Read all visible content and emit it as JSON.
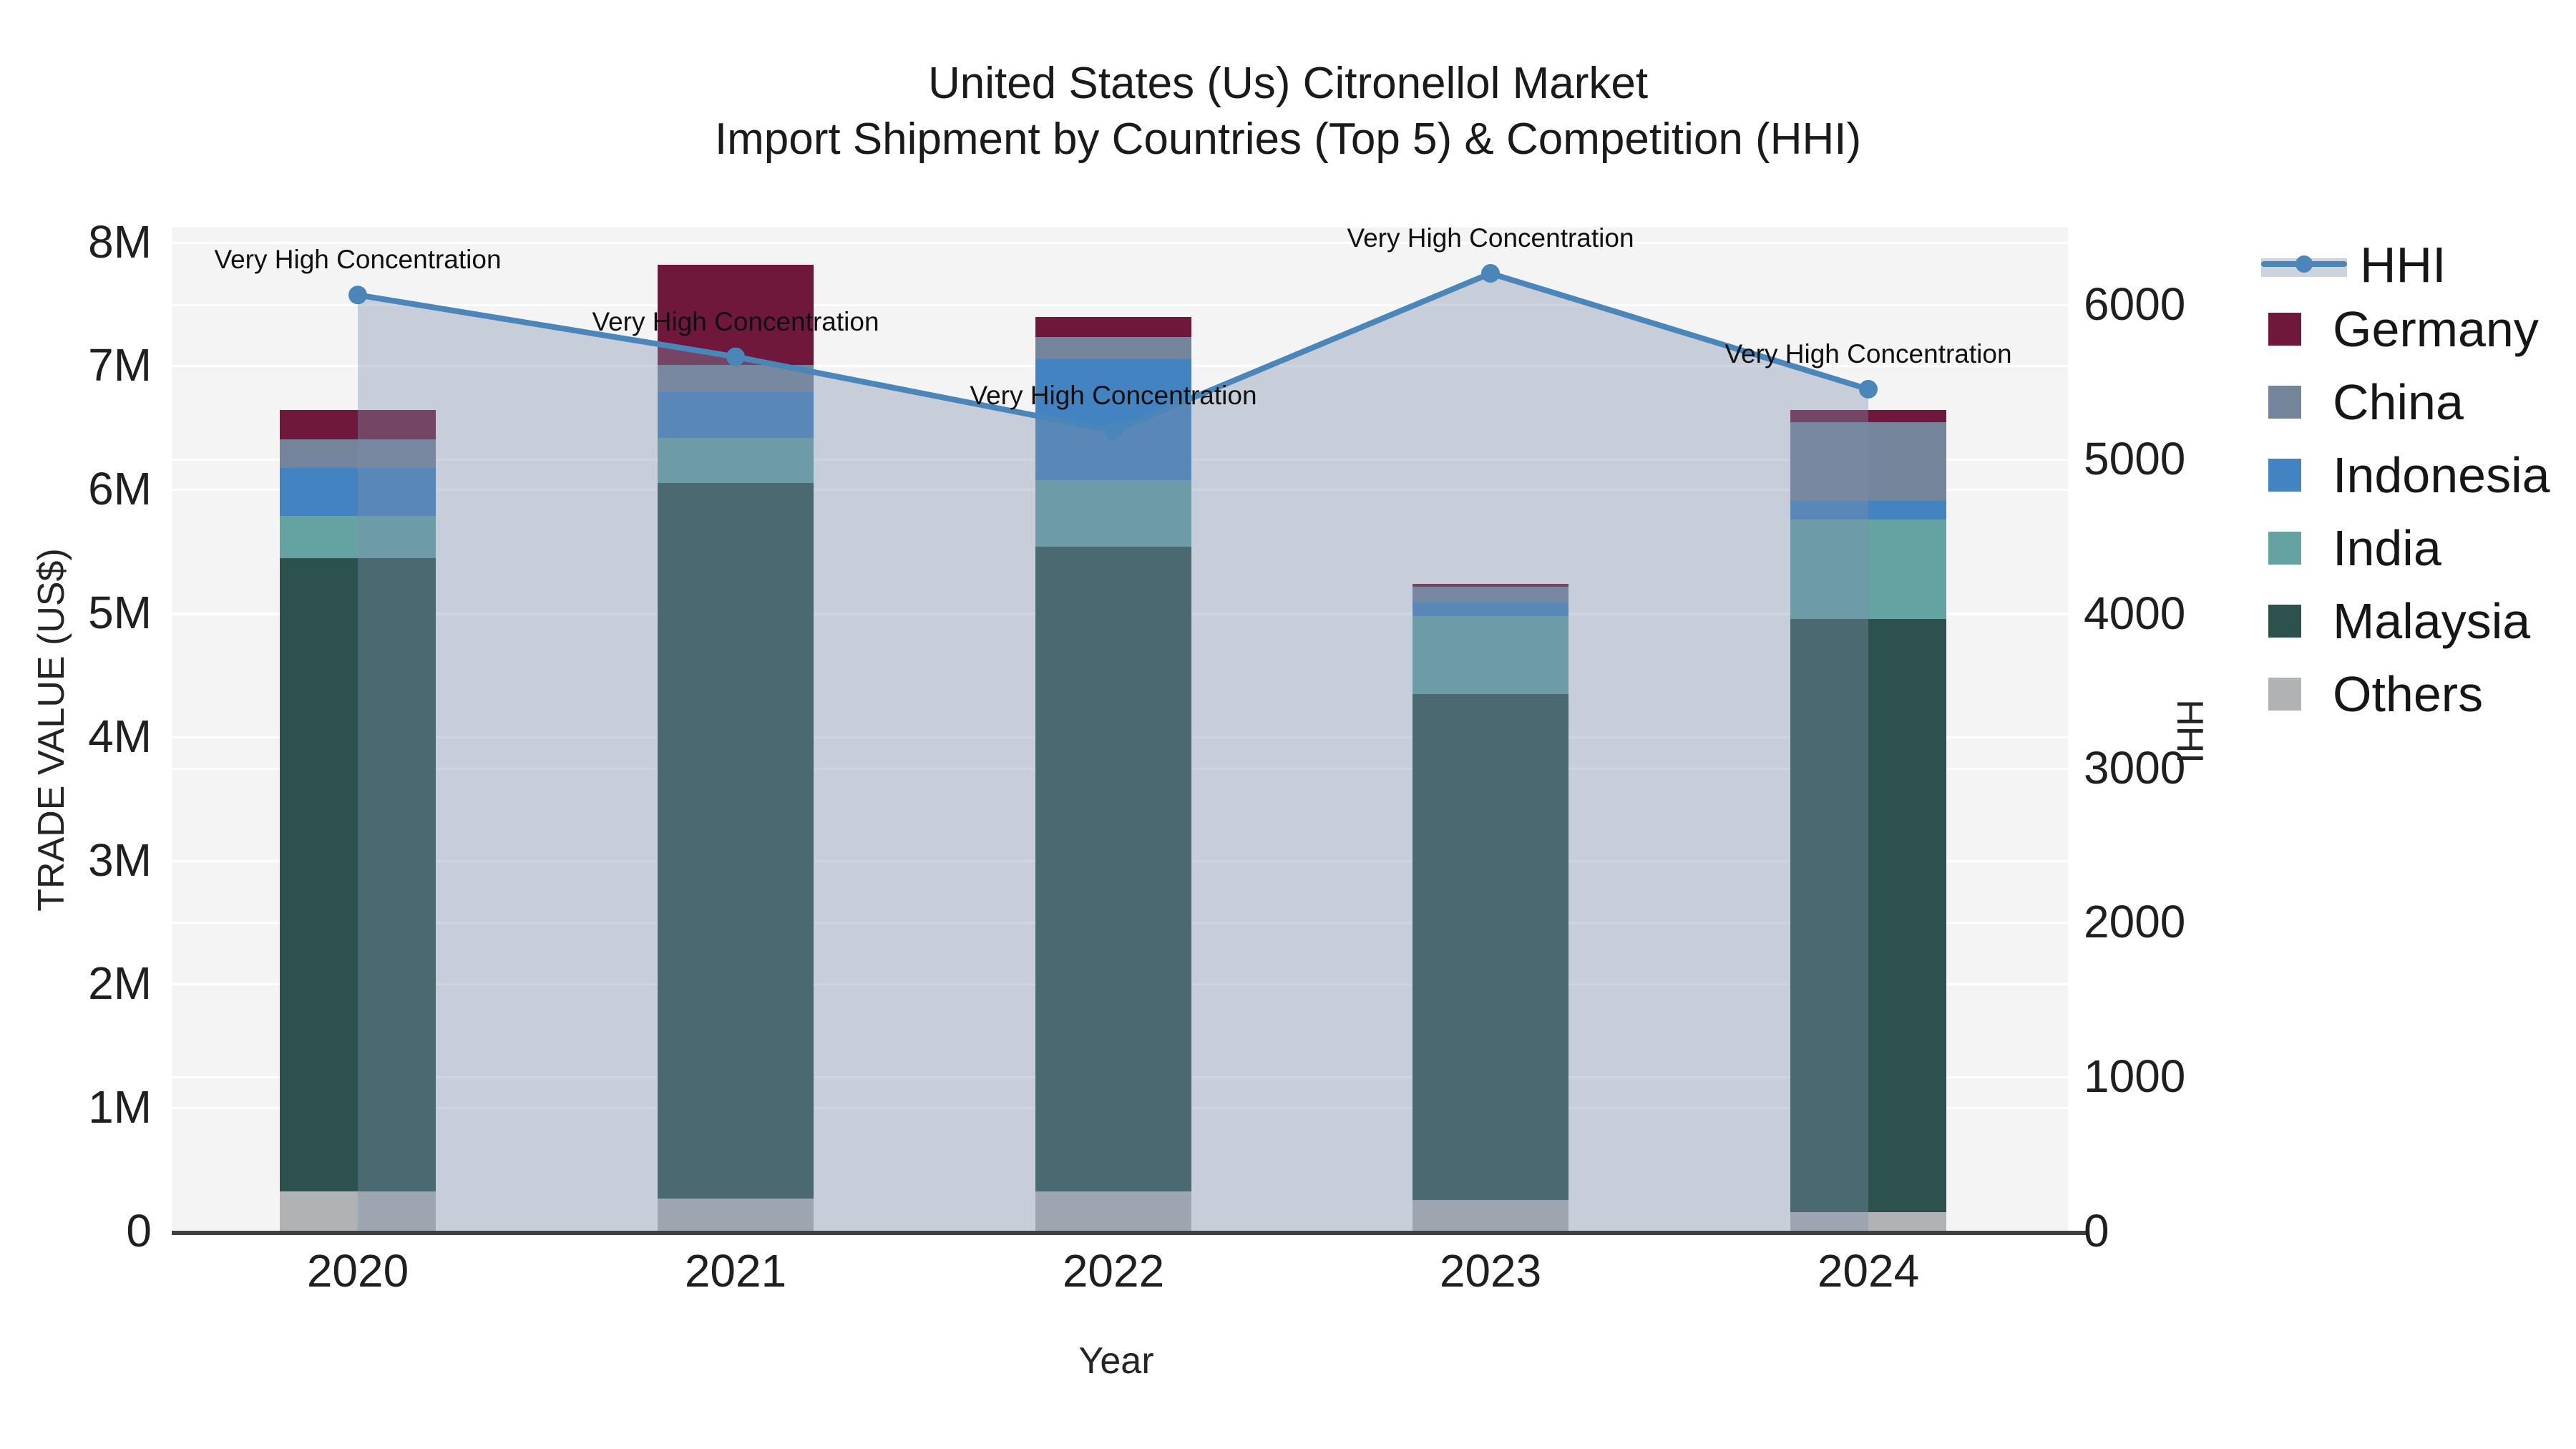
{
  "title": {
    "line1": "United States (Us) Citronellol Market",
    "line2": "Import Shipment by Countries (Top 5) & Competition (HHI)"
  },
  "axes": {
    "x": {
      "title": "Year"
    },
    "y_left": {
      "title": "TRADE VALUE (US$)",
      "tick_labels": [
        "0",
        "1M",
        "2M",
        "3M",
        "4M",
        "5M",
        "6M",
        "7M",
        "8M"
      ]
    },
    "y_right": {
      "title": "HHI",
      "tick_labels": [
        "0",
        "1000",
        "2000",
        "3000",
        "4000",
        "5000",
        "6000"
      ]
    }
  },
  "legend": {
    "items": [
      {
        "label": "HHI",
        "type": "line",
        "color": "#4a86b8",
        "band": "#ccd3dd"
      },
      {
        "label": "Germany",
        "type": "box",
        "color": "#70173c"
      },
      {
        "label": "China",
        "type": "box",
        "color": "#74849a"
      },
      {
        "label": "Indonesia",
        "type": "box",
        "color": "#4383c1"
      },
      {
        "label": "India",
        "type": "box",
        "color": "#65a3a3"
      },
      {
        "label": "Malaysia",
        "type": "box",
        "color": "#2d524e"
      },
      {
        "label": "Others",
        "type": "box",
        "color": "#b1b2b4"
      }
    ]
  },
  "chart_data": {
    "type": "stacked-bar+line",
    "categories": [
      "2020",
      "2021",
      "2022",
      "2023",
      "2024"
    ],
    "bar_unit": "trade value, millions US$",
    "series": [
      {
        "name": "Germany",
        "color": "#70173c",
        "values": [
          0.24,
          0.81,
          0.16,
          0.02,
          0.1
        ]
      },
      {
        "name": "China",
        "color": "#74849a",
        "values": [
          0.23,
          0.22,
          0.18,
          0.13,
          0.64
        ]
      },
      {
        "name": "Indonesia",
        "color": "#4383c1",
        "values": [
          0.39,
          0.37,
          0.98,
          0.11,
          0.15
        ]
      },
      {
        "name": "India",
        "color": "#65a3a3",
        "values": [
          0.34,
          0.36,
          0.54,
          0.63,
          0.8
        ]
      },
      {
        "name": "Malaysia",
        "color": "#2d524e",
        "values": [
          5.12,
          5.79,
          5.21,
          4.09,
          4.8
        ]
      },
      {
        "name": "Others",
        "color": "#b1b2b4",
        "values": [
          0.32,
          0.26,
          0.32,
          0.25,
          0.15
        ]
      }
    ],
    "bar_totals": [
      6.64,
      7.81,
      7.39,
      5.23,
      6.64
    ],
    "line": {
      "name": "HHI",
      "axis": "right",
      "color": "#4a86b8",
      "fill_color": "#7d91aa",
      "fill_opacity": 0.38,
      "values": [
        6060,
        5660,
        5180,
        6200,
        5450
      ]
    },
    "annotations": [
      "Very High Concentration",
      "Very High Concentration",
      "Very High Concentration",
      "Very High Concentration",
      "Very High Concentration"
    ],
    "xlabel": "Year",
    "ylabel_left": "TRADE VALUE (US$)",
    "ylabel_right": "HHI",
    "ylim_left_millions": [
      0,
      8.11
    ],
    "ylim_right": [
      0,
      6497
    ],
    "y_left_ticks_millions": [
      0,
      1,
      2,
      3,
      4,
      5,
      6,
      7,
      8
    ],
    "y_right_ticks": [
      0,
      1000,
      2000,
      3000,
      4000,
      5000,
      6000
    ],
    "grid": true,
    "legend_position": "right"
  }
}
